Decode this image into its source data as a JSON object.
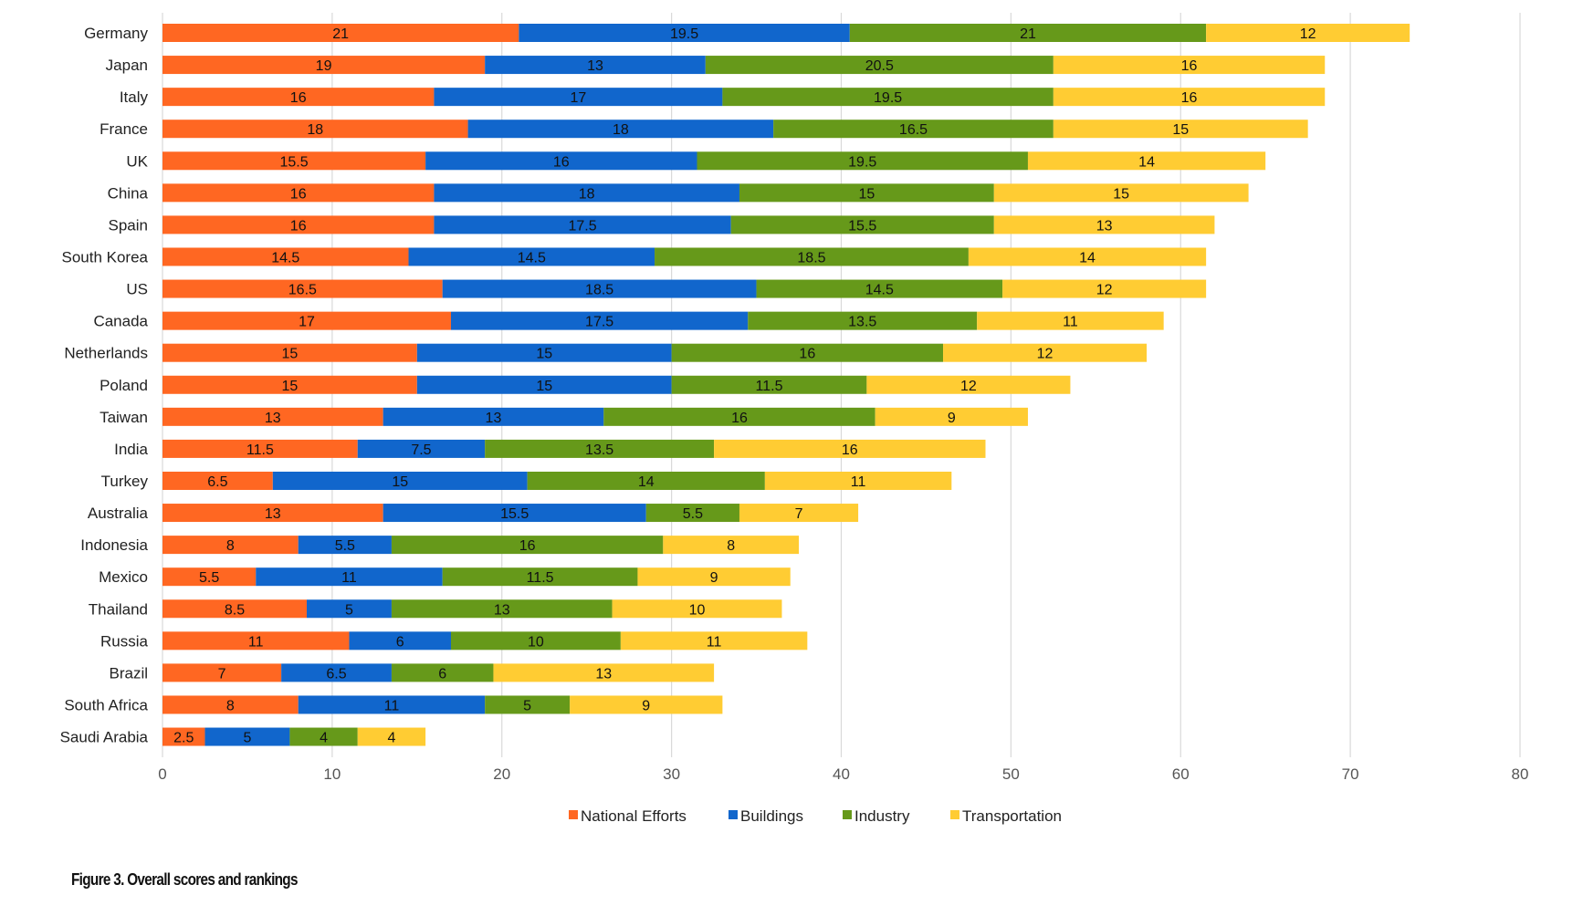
{
  "chart_data": {
    "type": "bar",
    "orientation": "horizontal",
    "stacked": true,
    "title": "",
    "xlabel": "",
    "ylabel": "",
    "xlim": [
      0,
      80
    ],
    "xticks": [
      0,
      10,
      20,
      30,
      40,
      50,
      60,
      70,
      80
    ],
    "grid": "vertical",
    "legend": "bottom",
    "categories": [
      "Germany",
      "Japan",
      "Italy",
      "France",
      "UK",
      "China",
      "Spain",
      "South Korea",
      "US",
      "Canada",
      "Netherlands",
      "Poland",
      "Taiwan",
      "India",
      "Turkey",
      "Australia",
      "Indonesia",
      "Mexico",
      "Thailand",
      "Russia",
      "Brazil",
      "South Africa",
      "Saudi Arabia"
    ],
    "series": [
      {
        "name": "National Efforts",
        "color": "#ff6722",
        "values": [
          21,
          19,
          16,
          18,
          15.5,
          16,
          16,
          14.5,
          16.5,
          17,
          15,
          15,
          13,
          11.5,
          6.5,
          13,
          8,
          5.5,
          8.5,
          11,
          7,
          8,
          2.5
        ]
      },
      {
        "name": "Buildings",
        "color": "#1166cc",
        "values": [
          19.5,
          13,
          17,
          18,
          16,
          18,
          17.5,
          14.5,
          18.5,
          17.5,
          15,
          15,
          13,
          7.5,
          15,
          15.5,
          5.5,
          11,
          5,
          6,
          6.5,
          11,
          5
        ]
      },
      {
        "name": "Industry",
        "color": "#66991a",
        "values": [
          21,
          20.5,
          19.5,
          16.5,
          19.5,
          15,
          15.5,
          18.5,
          14.5,
          13.5,
          16,
          11.5,
          16,
          13.5,
          14,
          5.5,
          16,
          11.5,
          13,
          10,
          6,
          5,
          4
        ]
      },
      {
        "name": "Transportation",
        "color": "#ffcc33",
        "values": [
          12,
          16,
          16,
          15,
          14,
          15,
          13,
          14,
          12,
          11,
          12,
          12,
          9,
          16,
          11,
          7,
          8,
          9,
          10,
          11,
          13,
          9,
          4
        ]
      }
    ]
  },
  "caption": "Figure 3. Overall scores and rankings"
}
